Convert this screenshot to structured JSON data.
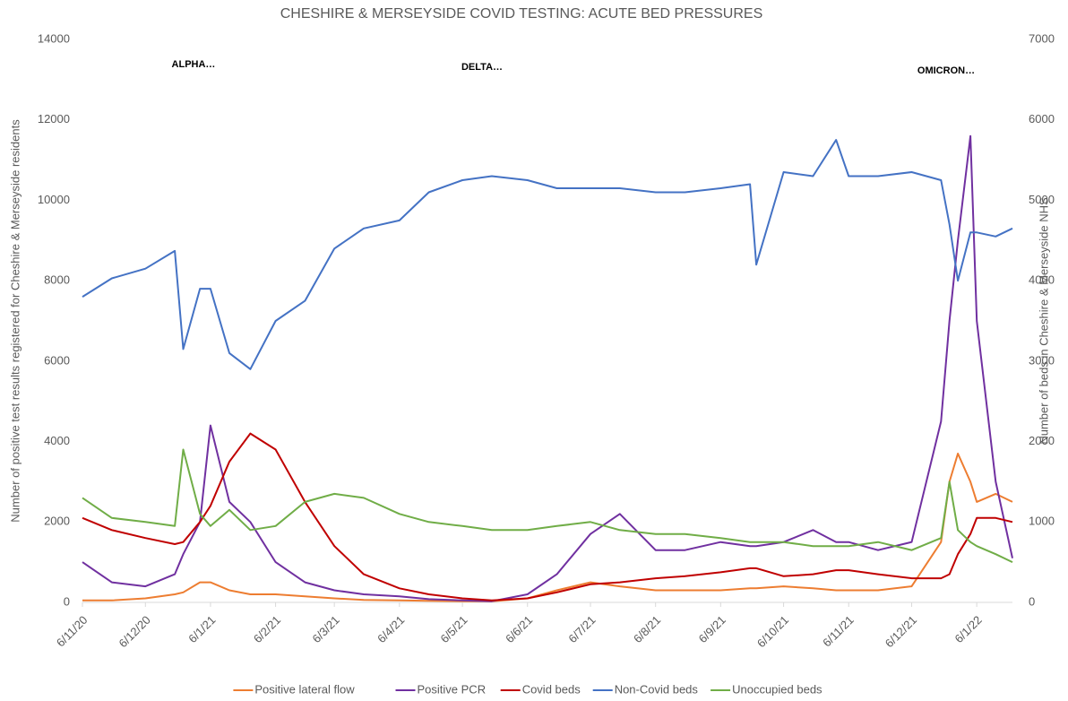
{
  "chart_data": {
    "type": "line",
    "title": "CHESHIRE & MERSEYSIDE COVID TESTING: ACUTE BED PRESSURES",
    "y_label": "Number of positive test results registered for Cheshire & Merseyside residents",
    "y2_label": "Number of beds in Cheshire & Merseyside NHS",
    "annotations": [
      "ALPHA…",
      "DELTA…",
      "OMICRON…"
    ],
    "legend": "bottom",
    "x": [
      "2020-11-06",
      "2020-11-20",
      "2020-12-06",
      "2020-12-20",
      "2020-12-24",
      "2021-01-01",
      "2021-01-06",
      "2021-01-15",
      "2021-01-25",
      "2021-02-06",
      "2021-02-20",
      "2021-03-06",
      "2021-03-20",
      "2021-04-06",
      "2021-04-20",
      "2021-05-06",
      "2021-05-20",
      "2021-06-06",
      "2021-06-20",
      "2021-07-06",
      "2021-07-20",
      "2021-08-06",
      "2021-08-20",
      "2021-09-06",
      "2021-09-20",
      "2021-09-23",
      "2021-10-06",
      "2021-10-20",
      "2021-10-31",
      "2021-11-06",
      "2021-11-20",
      "2021-12-06",
      "2021-12-20",
      "2021-12-24",
      "2021-12-28",
      "2022-01-03",
      "2022-01-06",
      "2022-01-15",
      "2022-01-23"
    ],
    "xlim": [
      "2020-11-06",
      "2022-01-23"
    ],
    "xticks": [
      {
        "value": "2020-11-06",
        "label": "6/11/20"
      },
      {
        "value": "2020-12-06",
        "label": "6/12/20"
      },
      {
        "value": "2021-01-06",
        "label": "6/1/21"
      },
      {
        "value": "2021-02-06",
        "label": "6/2/21"
      },
      {
        "value": "2021-03-06",
        "label": "6/3/21"
      },
      {
        "value": "2021-04-06",
        "label": "6/4/21"
      },
      {
        "value": "2021-05-06",
        "label": "6/5/21"
      },
      {
        "value": "2021-06-06",
        "label": "6/6/21"
      },
      {
        "value": "2021-07-06",
        "label": "6/7/21"
      },
      {
        "value": "2021-08-06",
        "label": "6/8/21"
      },
      {
        "value": "2021-09-06",
        "label": "6/9/21"
      },
      {
        "value": "2021-10-06",
        "label": "6/10/21"
      },
      {
        "value": "2021-11-06",
        "label": "6/11/21"
      },
      {
        "value": "2021-12-06",
        "label": "6/12/21"
      },
      {
        "value": "2022-01-06",
        "label": "6/1/22"
      }
    ],
    "ylim": [
      0,
      14000
    ],
    "yticks": [
      0,
      2000,
      4000,
      6000,
      8000,
      10000,
      12000,
      14000
    ],
    "y2lim": [
      0,
      7000
    ],
    "y2ticks": [
      0,
      1000,
      2000,
      3000,
      4000,
      5000,
      6000,
      7000
    ],
    "series": [
      {
        "name": "Positive lateral flow",
        "color": "#ed7d31",
        "values": [
          50,
          50,
          100,
          200,
          250,
          500,
          500,
          300,
          200,
          200,
          150,
          100,
          60,
          50,
          40,
          30,
          30,
          100,
          300,
          500,
          400,
          300,
          300,
          300,
          350,
          350,
          400,
          350,
          300,
          300,
          300,
          400,
          1500,
          3000,
          3700,
          3000,
          2500,
          2700,
          2500
        ]
      },
      {
        "name": "Positive PCR",
        "color": "#7030a0",
        "values": [
          1000,
          500,
          400,
          700,
          1200,
          2000,
          4400,
          2500,
          2000,
          1000,
          500,
          300,
          200,
          150,
          80,
          50,
          30,
          200,
          700,
          1700,
          2200,
          1300,
          1300,
          1500,
          1400,
          1400,
          1500,
          1800,
          1500,
          1500,
          1300,
          1500,
          4500,
          7000,
          9000,
          11600,
          7000,
          3000,
          1100
        ]
      },
      {
        "name": "Covid beds",
        "color": "#c00000",
        "axis": "y2",
        "values": [
          1050,
          900,
          800,
          725,
          750,
          1000,
          1200,
          1750,
          2100,
          1900,
          1250,
          700,
          350,
          175,
          100,
          50,
          25,
          50,
          125,
          225,
          250,
          300,
          325,
          375,
          425,
          425,
          325,
          350,
          400,
          400,
          350,
          300,
          300,
          350,
          600,
          850,
          1050,
          1050,
          1000
        ]
      },
      {
        "name": "Non-Covid beds",
        "color": "#4472c4",
        "axis": "y2",
        "values": [
          3800,
          4030,
          4150,
          4370,
          3150,
          3900,
          3900,
          3100,
          2900,
          3500,
          3750,
          4400,
          4650,
          4750,
          5100,
          5250,
          5300,
          5250,
          5150,
          5150,
          5150,
          5100,
          5100,
          5150,
          5200,
          4200,
          5350,
          5300,
          5750,
          5300,
          5300,
          5350,
          5250,
          4700,
          4000,
          4600,
          4600,
          4550,
          4650
        ]
      },
      {
        "name": "Unoccupied beds",
        "color": "#70ad47",
        "axis": "y2",
        "values": [
          1300,
          1050,
          1000,
          950,
          1900,
          1100,
          950,
          1150,
          900,
          950,
          1250,
          1350,
          1300,
          1100,
          1000,
          950,
          900,
          900,
          950,
          1000,
          900,
          850,
          850,
          800,
          750,
          750,
          750,
          700,
          700,
          700,
          750,
          650,
          800,
          1500,
          900,
          750,
          700,
          600,
          500
        ]
      }
    ]
  }
}
